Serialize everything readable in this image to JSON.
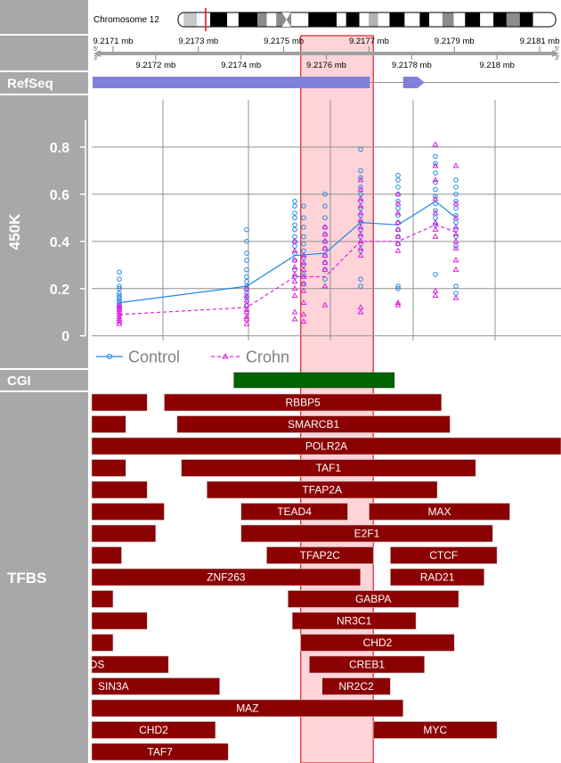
{
  "chromosome": {
    "label": "Chromosome 12",
    "bands": [
      {
        "start": 0.0,
        "end": 0.015,
        "color": "#ffffff"
      },
      {
        "start": 0.015,
        "end": 0.05,
        "color": "#c8c8c8"
      },
      {
        "start": 0.05,
        "end": 0.085,
        "color": "#ffffff"
      },
      {
        "start": 0.085,
        "end": 0.13,
        "color": "#000000"
      },
      {
        "start": 0.13,
        "end": 0.16,
        "color": "#ffffff"
      },
      {
        "start": 0.16,
        "end": 0.21,
        "color": "#000000"
      },
      {
        "start": 0.21,
        "end": 0.235,
        "color": "#8c8c8c"
      },
      {
        "start": 0.235,
        "end": 0.26,
        "color": "#ffffff"
      },
      {
        "start": 0.26,
        "end": 0.3,
        "color": "#8c8c8c"
      },
      {
        "start": 0.3,
        "end": 0.345,
        "color": "#ffffff"
      },
      {
        "start": 0.345,
        "end": 0.42,
        "color": "#000000"
      },
      {
        "start": 0.42,
        "end": 0.445,
        "color": "#ffffff"
      },
      {
        "start": 0.445,
        "end": 0.48,
        "color": "#000000"
      },
      {
        "start": 0.48,
        "end": 0.505,
        "color": "#ffffff"
      },
      {
        "start": 0.505,
        "end": 0.53,
        "color": "#b4b4b4"
      },
      {
        "start": 0.53,
        "end": 0.56,
        "color": "#ffffff"
      },
      {
        "start": 0.56,
        "end": 0.6,
        "color": "#000000"
      },
      {
        "start": 0.6,
        "end": 0.64,
        "color": "#ffffff"
      },
      {
        "start": 0.64,
        "end": 0.665,
        "color": "#000000"
      },
      {
        "start": 0.665,
        "end": 0.7,
        "color": "#ffffff"
      },
      {
        "start": 0.7,
        "end": 0.73,
        "color": "#8c8c8c"
      },
      {
        "start": 0.73,
        "end": 0.76,
        "color": "#ffffff"
      },
      {
        "start": 0.76,
        "end": 0.8,
        "color": "#000000"
      },
      {
        "start": 0.8,
        "end": 0.835,
        "color": "#ffffff"
      },
      {
        "start": 0.835,
        "end": 0.87,
        "color": "#000000"
      },
      {
        "start": 0.87,
        "end": 0.905,
        "color": "#8c8c8c"
      },
      {
        "start": 0.905,
        "end": 0.94,
        "color": "#000000"
      },
      {
        "start": 0.94,
        "end": 1.0,
        "color": "#ffffff"
      }
    ],
    "centromere": 0.287,
    "marker": 0.073
  },
  "axis": {
    "range": [
      9.21705,
      9.21815
    ],
    "major_ticks": [
      9.2171,
      9.2173,
      9.2175,
      9.2177,
      9.2179,
      9.2181
    ],
    "minor_ticks": [
      9.2172,
      9.2174,
      9.2176,
      9.2178,
      9.218
    ],
    "major_labels": [
      "9.2171 mb",
      "9.2173 mb",
      "9.2175 mb",
      "9.2177 mb",
      "9.2179 mb",
      "9.2181 mb"
    ],
    "minor_labels": [
      "9.2172 mb",
      "9.2174 mb",
      "9.2176 mb",
      "9.2178 mb",
      "9.218 mb"
    ],
    "strand_left_top": "5'",
    "strand_left_bottom": "3'",
    "strand_right_top": "5'",
    "strand_right_bottom": "3'"
  },
  "highlight": {
    "start": 9.21754,
    "end": 9.21771,
    "fill": "#ffd4d8",
    "stroke": "#dd2020"
  },
  "tracks": {
    "refseq": "RefSeq",
    "methylation": "450K",
    "cgi": "CGI",
    "tfbs": "TFBS"
  },
  "refseq": {
    "bar": [
      9.21705,
      9.2177
    ],
    "arrow": [
      9.21778,
      9.21783
    ],
    "color": "#8080d8"
  },
  "cgi": {
    "start": 9.21735,
    "end": 9.21773,
    "color": "#006400"
  },
  "chart_data": {
    "type": "scatter",
    "ylim": [
      -0.02,
      1.0
    ],
    "yticks": [
      0,
      0.2,
      0.4,
      0.6,
      0.8
    ],
    "ytick_labels": [
      "0",
      "0.2",
      "0.4",
      "0.6",
      "0.8"
    ],
    "x": [
      9.21712,
      9.21729,
      9.2175,
      9.21757,
      9.21766,
      9.21774,
      9.21784,
      9.21789
    ],
    "series": [
      {
        "name": "Control",
        "color": "#1e88e5",
        "marker": "circle",
        "mean": [
          0.14,
          0.21,
          0.34,
          0.35,
          0.48,
          0.47,
          0.57,
          0.5
        ],
        "points": [
          [
            0.27,
            0.24,
            0.21,
            0.2,
            0.18,
            0.17,
            0.16,
            0.15,
            0.14,
            0.13,
            0.12,
            0.11
          ],
          [
            0.45,
            0.4,
            0.35,
            0.32,
            0.28,
            0.25,
            0.23,
            0.21,
            0.2,
            0.18,
            0.16,
            0.13
          ],
          [
            0.57,
            0.55,
            0.52,
            0.5,
            0.47,
            0.45,
            0.42,
            0.4,
            0.38,
            0.35,
            0.32,
            0.28,
            0.25
          ],
          [
            0.55,
            0.5,
            0.46,
            0.42,
            0.39,
            0.36,
            0.33,
            0.3,
            0.26,
            0.22
          ],
          [
            0.6,
            0.55,
            0.5,
            0.46,
            0.43,
            0.4,
            0.37,
            0.34,
            0.31,
            0.28,
            0.24
          ],
          [
            0.79,
            0.7,
            0.67,
            0.63,
            0.6,
            0.57,
            0.54,
            0.51,
            0.48,
            0.45,
            0.42,
            0.39,
            0.36,
            0.24,
            0.21
          ],
          [
            0.68,
            0.66,
            0.63,
            0.6,
            0.57,
            0.54,
            0.51,
            0.48,
            0.45,
            0.42,
            0.39,
            0.21,
            0.2
          ],
          [
            0.76,
            0.73,
            0.69,
            0.65,
            0.62,
            0.59,
            0.56,
            0.53,
            0.5,
            0.47,
            0.26
          ],
          [
            0.66,
            0.63,
            0.6,
            0.57,
            0.54,
            0.51,
            0.48,
            0.45,
            0.42,
            0.38,
            0.21,
            0.18
          ]
        ]
      },
      {
        "name": "Crohn",
        "color": "#e020e0",
        "marker": "triangle",
        "mean": [
          0.09,
          0.12,
          0.25,
          0.25,
          0.4,
          0.4,
          0.47,
          0.44
        ],
        "points": [
          [
            0.13,
            0.12,
            0.11,
            0.1,
            0.09,
            0.08,
            0.07,
            0.06,
            0.05
          ],
          [
            0.2,
            0.17,
            0.15,
            0.13,
            0.11,
            0.1,
            0.08,
            0.07,
            0.05
          ],
          [
            0.4,
            0.36,
            0.32,
            0.29,
            0.26,
            0.23,
            0.2,
            0.17,
            0.1,
            0.07
          ],
          [
            0.34,
            0.31,
            0.28,
            0.25,
            0.22,
            0.19,
            0.14,
            0.09,
            0.06
          ],
          [
            0.46,
            0.43,
            0.4,
            0.37,
            0.34,
            0.31,
            0.28,
            0.21,
            0.13
          ],
          [
            0.66,
            0.62,
            0.58,
            0.55,
            0.52,
            0.49,
            0.46,
            0.43,
            0.4,
            0.37,
            0.34,
            0.12,
            0.1
          ],
          [
            0.6,
            0.56,
            0.52,
            0.48,
            0.45,
            0.42,
            0.39,
            0.36,
            0.14,
            0.13
          ],
          [
            0.81,
            0.72,
            0.66,
            0.58,
            0.52,
            0.48,
            0.45,
            0.42,
            0.19,
            0.17
          ],
          [
            0.72,
            0.56,
            0.5,
            0.46,
            0.43,
            0.4,
            0.37,
            0.32,
            0.28,
            0.16
          ]
        ]
      }
    ],
    "point_x_offsets": [
      [
        9.21711,
        9.21712
      ],
      [
        9.21729,
        9.21729
      ],
      [
        9.2175,
        9.2175
      ],
      [
        9.21757,
        9.21757
      ],
      [
        9.21766,
        9.21766
      ],
      [
        9.21773,
        9.21774
      ],
      [
        9.21784,
        9.21784
      ],
      [
        9.21794,
        9.21794
      ],
      [
        9.21804,
        9.21804
      ]
    ],
    "legend": [
      "Control",
      "Crohn"
    ],
    "grid": true
  },
  "tfbs": {
    "color": "#8b0000",
    "rows": [
      [
        {
          "start": 9.21705,
          "end": 9.21718,
          "label": ""
        },
        {
          "start": 9.21722,
          "end": 9.21787,
          "label": "RBBP5"
        }
      ],
      [
        {
          "start": 9.21705,
          "end": 9.21713,
          "label": ""
        },
        {
          "start": 9.21725,
          "end": 9.21789,
          "label": "SMARCB1"
        }
      ],
      [
        {
          "start": 9.21705,
          "end": 9.21815,
          "label": "POLR2A"
        }
      ],
      [
        {
          "start": 9.21705,
          "end": 9.21713,
          "label": ""
        },
        {
          "start": 9.21726,
          "end": 9.21795,
          "label": "TAF1"
        }
      ],
      [
        {
          "start": 9.21705,
          "end": 9.21718,
          "label": ""
        },
        {
          "start": 9.21732,
          "end": 9.21786,
          "label": "TFAP2A"
        }
      ],
      [
        {
          "start": 9.21705,
          "end": 9.21722,
          "label": ""
        },
        {
          "start": 9.2174,
          "end": 9.21765,
          "label": "TEAD4"
        },
        {
          "start": 9.2177,
          "end": 9.21803,
          "label": "MAX"
        }
      ],
      [
        {
          "start": 9.21705,
          "end": 9.2172,
          "label": ""
        },
        {
          "start": 9.2174,
          "end": 9.21799,
          "label": "E2F1"
        }
      ],
      [
        {
          "start": 9.21705,
          "end": 9.21712,
          "label": ""
        },
        {
          "start": 9.21746,
          "end": 9.21771,
          "label": "TFAP2C"
        },
        {
          "start": 9.21775,
          "end": 9.218,
          "label": "CTCF"
        }
      ],
      [
        {
          "start": 9.21705,
          "end": 9.21768,
          "label": "ZNF263"
        },
        {
          "start": 9.21775,
          "end": 9.21797,
          "label": "RAD21"
        }
      ],
      [
        {
          "start": 9.21705,
          "end": 9.2171,
          "label": ""
        },
        {
          "start": 9.21751,
          "end": 9.21791,
          "label": "GABPA"
        }
      ],
      [
        {
          "start": 9.21705,
          "end": 9.21718,
          "label": ""
        },
        {
          "start": 9.21752,
          "end": 9.21781,
          "label": "NR3C1"
        }
      ],
      [
        {
          "start": 9.21705,
          "end": 9.2171,
          "label": ""
        },
        {
          "start": 9.21754,
          "end": 9.2179,
          "label": "CHD2"
        }
      ],
      [
        {
          "start": 9.21704,
          "end": 9.21723,
          "label": "OS"
        },
        {
          "start": 9.21756,
          "end": 9.21783,
          "label": "CREB1"
        }
      ],
      [
        {
          "start": 9.21705,
          "end": 9.21735,
          "label": "SIN3A"
        },
        {
          "start": 9.21759,
          "end": 9.21775,
          "label": "NR2C2"
        }
      ],
      [
        {
          "start": 9.21705,
          "end": 9.21778,
          "label": "MAZ"
        }
      ],
      [
        {
          "start": 9.21705,
          "end": 9.21734,
          "label": "CHD2"
        },
        {
          "start": 9.21771,
          "end": 9.218,
          "label": "MYC"
        }
      ],
      [
        {
          "start": 9.21705,
          "end": 9.21737,
          "label": "TAF7"
        }
      ]
    ]
  }
}
